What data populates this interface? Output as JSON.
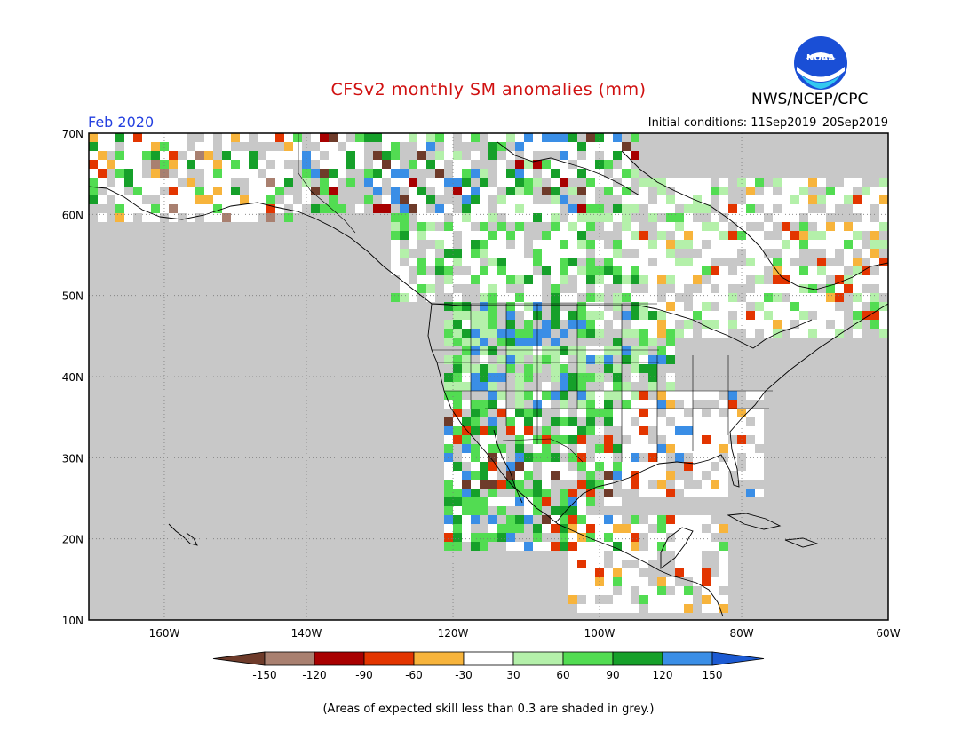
{
  "header": {
    "title": "CFSv2 monthly SM anomalies (mm)",
    "month": "Feb 2020",
    "initial_conditions": "Initial conditions: 11Sep2019–20Sep2019",
    "org": "NWS/NCEP/CPC",
    "logo_text": "NOAA"
  },
  "map": {
    "lat_labels": [
      "70N",
      "60N",
      "50N",
      "40N",
      "30N",
      "20N",
      "10N"
    ],
    "lon_labels": [
      "160W",
      "140W",
      "120W",
      "100W",
      "80W",
      "60W"
    ],
    "background_color": "#c8c8c8"
  },
  "legend": {
    "labels": [
      "-150",
      "-120",
      "-90",
      "-60",
      "-30",
      "30",
      "60",
      "90",
      "120",
      "150"
    ],
    "colors": [
      "#6e3b2a",
      "#a98070",
      "#a80000",
      "#e33500",
      "#f7b43c",
      "#ffffff",
      "#b4f0aa",
      "#52dc52",
      "#16a02a",
      "#3a8ee6",
      "#1c5ad2"
    ]
  },
  "footer": {
    "note": "(Areas of expected skill less than 0.3 are shaded in grey.)"
  }
}
